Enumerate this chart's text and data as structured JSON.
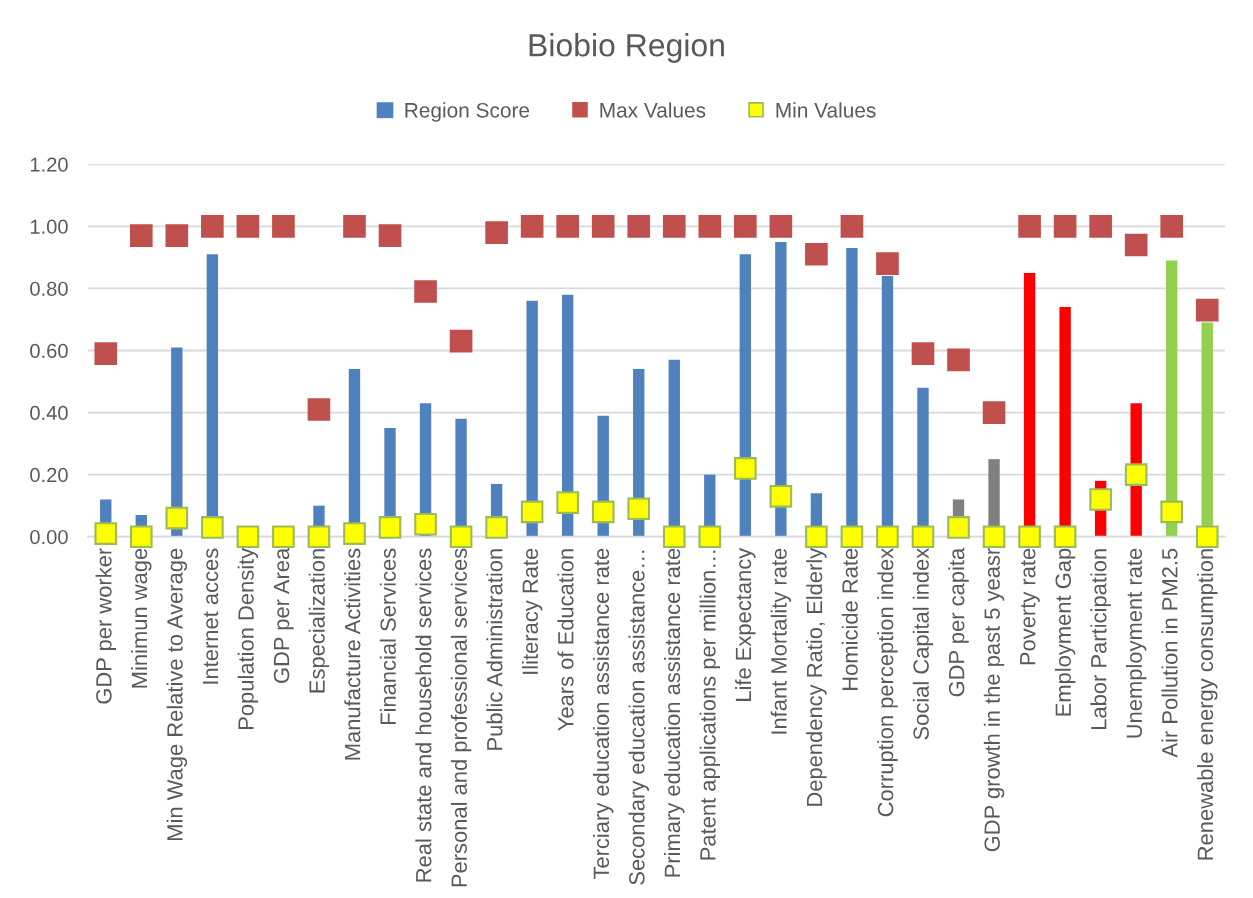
{
  "chart_data": {
    "type": "bar",
    "title": "Biobio Region",
    "categories": [
      "GDP per worker",
      "Minimun wage",
      "Min Wage Relative to Average",
      "Internet acces",
      "Population Density",
      "GDP per Area",
      "Especialization",
      "Manufacture Activities",
      "Financial Services",
      "Real state and household services",
      "Personal and professional services",
      "Public Administration",
      "Iliteracy Rate",
      "Years of Education",
      "Terciary education assistance rate",
      "Secondary education assistance…",
      "Primary education assistance rate",
      "Patent applications per million…",
      "Life Expectancy",
      "Infant Mortality rate",
      "Dependency Ratio, Elderly",
      "Homicide Rate",
      "Corruption perception index",
      "Social Capital index",
      "GDP per capita",
      "GDP growth in the past 5 yeasr",
      "Poverty rate",
      "Employment Gap",
      "Labor Participation",
      "Unemployment rate",
      "Air Pollution in PM2.5",
      "Renewable energy consumption"
    ],
    "series": [
      {
        "name": "Region Score",
        "color": "#4f81bd",
        "colors": [
          "#4f81bd",
          "#4f81bd",
          "#4f81bd",
          "#4f81bd",
          "#4f81bd",
          "#4f81bd",
          "#4f81bd",
          "#4f81bd",
          "#4f81bd",
          "#4f81bd",
          "#4f81bd",
          "#4f81bd",
          "#4f81bd",
          "#4f81bd",
          "#4f81bd",
          "#4f81bd",
          "#4f81bd",
          "#4f81bd",
          "#4f81bd",
          "#4f81bd",
          "#4f81bd",
          "#4f81bd",
          "#4f81bd",
          "#4f81bd",
          "#808080",
          "#808080",
          "#ff0000",
          "#ff0000",
          "#ff0000",
          "#ff0000",
          "#92d050",
          "#92d050"
        ],
        "values": [
          0.12,
          0.07,
          0.61,
          0.91,
          0,
          0,
          0.1,
          0.54,
          0.35,
          0.43,
          0.38,
          0.17,
          0.76,
          0.78,
          0.39,
          0.54,
          0.57,
          0.2,
          0.91,
          0.95,
          0.14,
          0.93,
          0.84,
          0.48,
          0.12,
          0.25,
          0.85,
          0.74,
          0.18,
          0.43,
          0.89,
          0.69
        ]
      },
      {
        "name": "Max Values",
        "type": "scatter",
        "marker": "square",
        "color": "#c0504d",
        "values": [
          0.59,
          0.97,
          0.97,
          1.0,
          1.0,
          1.0,
          0.41,
          1.0,
          0.97,
          0.79,
          0.63,
          0.98,
          1.0,
          1.0,
          1.0,
          1.0,
          1.0,
          1.0,
          1.0,
          1.0,
          0.91,
          1.0,
          0.88,
          0.59,
          0.57,
          0.4,
          1.0,
          1.0,
          1.0,
          0.94,
          1.0,
          0.73
        ]
      },
      {
        "name": "Min Values",
        "type": "scatter",
        "marker": "square",
        "color": "#ffff00",
        "values": [
          0.01,
          0,
          0.06,
          0.03,
          0,
          0,
          0,
          0.01,
          0.03,
          0.04,
          0,
          0.03,
          0.08,
          0.11,
          0.08,
          0.09,
          0,
          0,
          0.22,
          0.13,
          0,
          0,
          0,
          0,
          0.03,
          0,
          0,
          0,
          0.12,
          0.2,
          0.08,
          0
        ]
      }
    ],
    "ylim": [
      0,
      1.2
    ],
    "yticks": [
      {
        "value": 0,
        "label": "0.00"
      },
      {
        "value": 0.2,
        "label": "0.20"
      },
      {
        "value": 0.4,
        "label": "0.40"
      },
      {
        "value": 0.6,
        "label": "0.60"
      },
      {
        "value": 0.8,
        "label": "0.80"
      },
      {
        "value": 1.0,
        "label": "1.00"
      },
      {
        "value": 1.2,
        "label": "1.20"
      }
    ],
    "grid": "y",
    "legend": "top"
  }
}
